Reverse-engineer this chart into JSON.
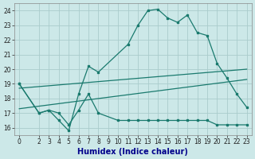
{
  "xlabel": "Humidex (Indice chaleur)",
  "bg_color": "#cce8e8",
  "grid_color": "#aacccc",
  "line_color": "#1a7a6e",
  "xlim": [
    -0.5,
    23.5
  ],
  "ylim": [
    15.5,
    24.5
  ],
  "xticks": [
    0,
    2,
    3,
    4,
    5,
    6,
    7,
    8,
    9,
    10,
    11,
    12,
    13,
    14,
    15,
    16,
    17,
    18,
    19,
    20,
    21,
    22,
    23
  ],
  "yticks": [
    16,
    17,
    18,
    19,
    20,
    21,
    22,
    23,
    24
  ],
  "series1_x": [
    0,
    2,
    3,
    4,
    5,
    6,
    7,
    8,
    11,
    12,
    13,
    14,
    15,
    16,
    17,
    18,
    19,
    20,
    21,
    22,
    23
  ],
  "series1_y": [
    19.0,
    17.0,
    17.2,
    16.5,
    15.8,
    18.3,
    20.2,
    19.8,
    21.7,
    23.0,
    24.0,
    24.1,
    23.5,
    23.2,
    23.7,
    22.5,
    22.3,
    20.4,
    19.4,
    18.3,
    17.4
  ],
  "series2_x": [
    0,
    2,
    3,
    4,
    5,
    6,
    7,
    8,
    10,
    11,
    12,
    13,
    14,
    15,
    16,
    17,
    18,
    19,
    20,
    21,
    22,
    23
  ],
  "series2_y": [
    19.0,
    17.0,
    17.2,
    17.0,
    16.2,
    17.2,
    18.3,
    17.0,
    16.5,
    16.5,
    16.5,
    16.5,
    16.5,
    16.5,
    16.5,
    16.5,
    16.5,
    16.5,
    16.2,
    16.2,
    16.2,
    16.2
  ],
  "series3_x": [
    0,
    23
  ],
  "series3_y": [
    18.7,
    20.0
  ],
  "series4_x": [
    0,
    23
  ],
  "series4_y": [
    17.3,
    19.3
  ],
  "tick_fontsize": 5.5,
  "label_fontsize": 7
}
